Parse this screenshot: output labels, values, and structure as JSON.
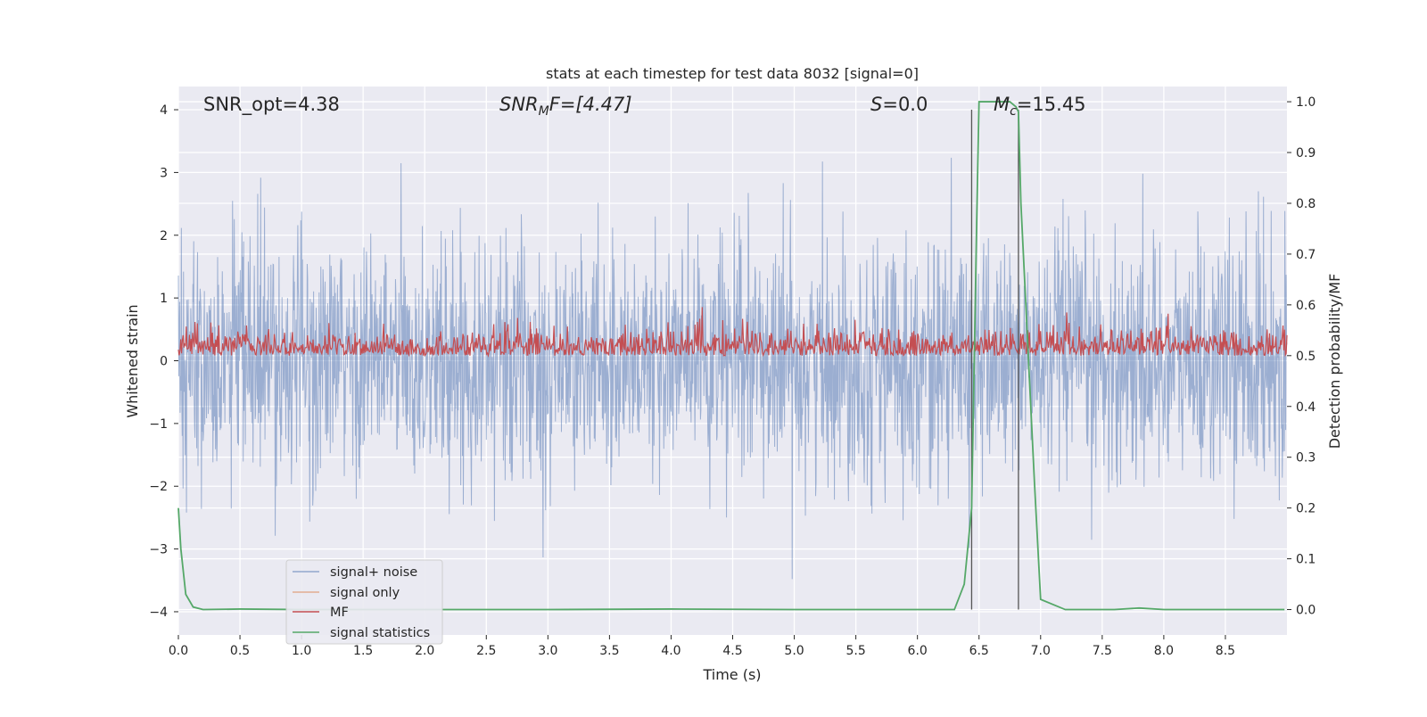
{
  "chart_data": {
    "type": "line",
    "title": "stats at each timestep for test data 8032 [signal=0]",
    "xlabel": "Time (s)",
    "ylabel_left": "Whitened strain",
    "ylabel_right": "Detection probability/MF",
    "xlim": [
      0.0,
      9.0
    ],
    "ylim_left": [
      -4.37,
      4.37
    ],
    "ylim_right": [
      -0.05,
      1.03
    ],
    "x_ticks": [
      "0.0",
      "0.5",
      "1.0",
      "1.5",
      "2.0",
      "2.5",
      "3.0",
      "3.5",
      "4.0",
      "4.5",
      "5.0",
      "5.5",
      "6.0",
      "6.5",
      "7.0",
      "7.5",
      "8.0",
      "8.5"
    ],
    "y_ticks_left": [
      "−4",
      "−3",
      "−2",
      "−1",
      "0",
      "1",
      "2",
      "3",
      "4"
    ],
    "y_ticks_right": [
      "0.0",
      "0.1",
      "0.2",
      "0.3",
      "0.4",
      "0.5",
      "0.6",
      "0.7",
      "0.8",
      "0.9",
      "1.0"
    ],
    "grid": true,
    "legend_position": "bottom-left",
    "annotations": {
      "snr_opt": "SNR_opt=4.38",
      "snr_mf_base": "SNR",
      "snr_mf_sub": "M",
      "snr_mf_rest": "F=[4.47]",
      "s_base": "S",
      "s_rest": "=0.0",
      "mc_base": "M",
      "mc_sub": "c",
      "mc_rest": "=15.45"
    },
    "series": [
      {
        "name": "signal+ noise",
        "color": "#4c72b0",
        "axis": "left",
        "description_values": {
          "typical_range": [
            -2.3,
            2.3
          ],
          "max": 4.0,
          "min": -4.0
        }
      },
      {
        "name": "signal only",
        "color": "#dd8452",
        "axis": "left",
        "values": []
      },
      {
        "name": "MF",
        "color": "#c44e52",
        "axis": "right",
        "description_values": {
          "typical_range": [
            0.5,
            0.57
          ],
          "max": 0.6
        }
      },
      {
        "name": "signal statistics",
        "color": "#55a868",
        "axis": "right",
        "x": [
          0.0,
          0.02,
          0.06,
          0.12,
          0.2,
          0.5,
          1.0,
          2.0,
          3.0,
          4.0,
          5.0,
          6.0,
          6.3,
          6.38,
          6.44,
          6.48,
          6.5,
          6.55,
          6.75,
          6.8,
          6.82,
          6.84,
          6.86,
          6.88,
          6.95,
          7.0,
          7.2,
          7.6,
          7.8,
          8.0,
          8.5,
          8.98
        ],
        "y": [
          0.2,
          0.12,
          0.03,
          0.005,
          0.0,
          0.001,
          0.0,
          0.0,
          0.0,
          0.001,
          0.0,
          0.0,
          0.0,
          0.05,
          0.2,
          0.75,
          1.0,
          1.0,
          1.0,
          0.99,
          0.98,
          0.8,
          0.7,
          0.6,
          0.25,
          0.02,
          0.0,
          0.0,
          0.003,
          0.0,
          0.0,
          0.0
        ]
      }
    ],
    "vertical_markers_x": [
      6.44,
      6.82
    ]
  }
}
